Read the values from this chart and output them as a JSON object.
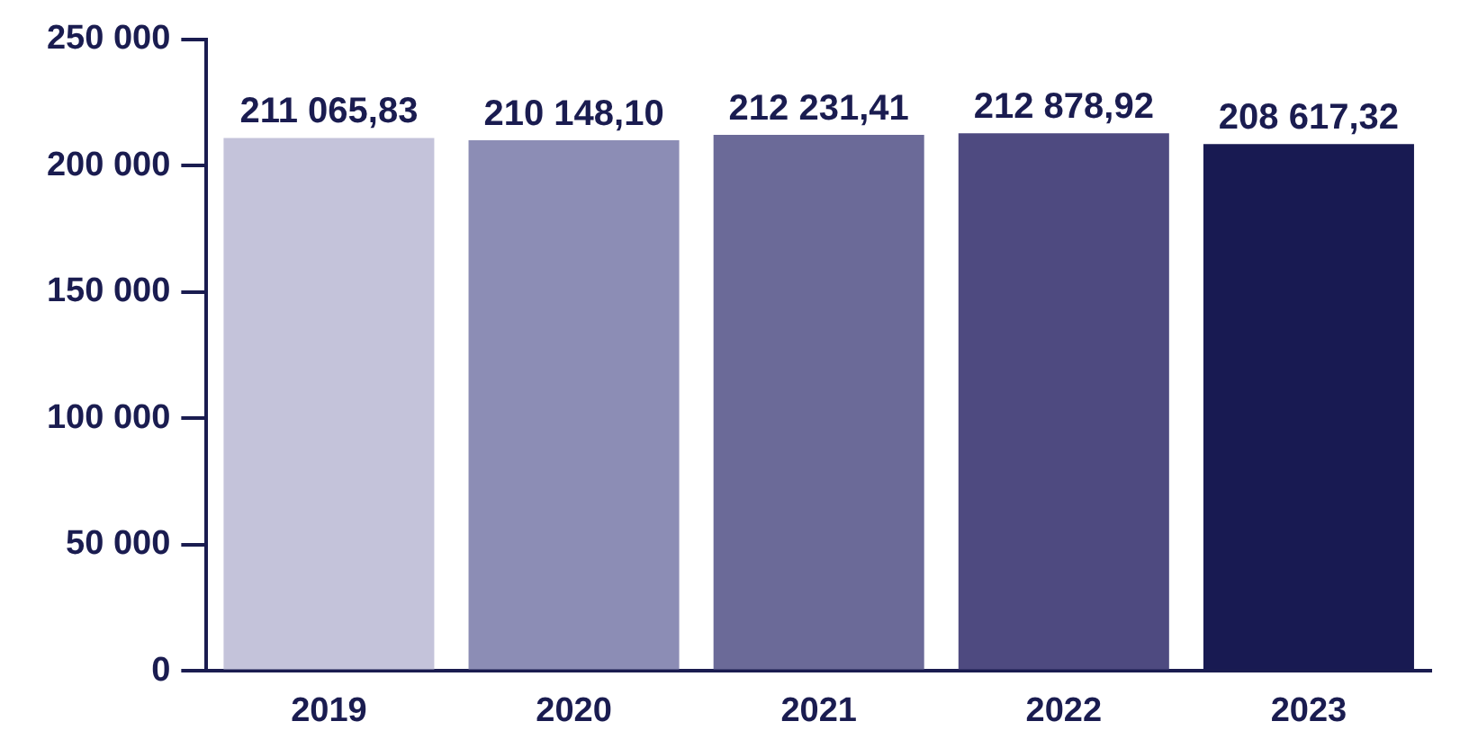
{
  "chart_data": {
    "type": "bar",
    "categories": [
      "2019",
      "2020",
      "2021",
      "2022",
      "2023"
    ],
    "values": [
      211065.83,
      210148.1,
      212231.41,
      212878.92,
      208617.32
    ],
    "colors": [
      "#c4c3da",
      "#8c8db5",
      "#6b6a98",
      "#4e4a80",
      "#181a52"
    ],
    "value_labels": [
      "211 065,83",
      "210 148,10",
      "212 231,41",
      "212 878,92",
      "208 617,32"
    ],
    "ylim": [
      0,
      250000
    ],
    "yticks": [
      {
        "value": 0,
        "label": "0"
      },
      {
        "value": 50000,
        "label": "50 000"
      },
      {
        "value": 100000,
        "label": "100 000"
      },
      {
        "value": 150000,
        "label": "150 000"
      },
      {
        "value": 200000,
        "label": "200 000"
      },
      {
        "value": 250000,
        "label": "250 000"
      }
    ],
    "grid": false,
    "legend": false
  }
}
